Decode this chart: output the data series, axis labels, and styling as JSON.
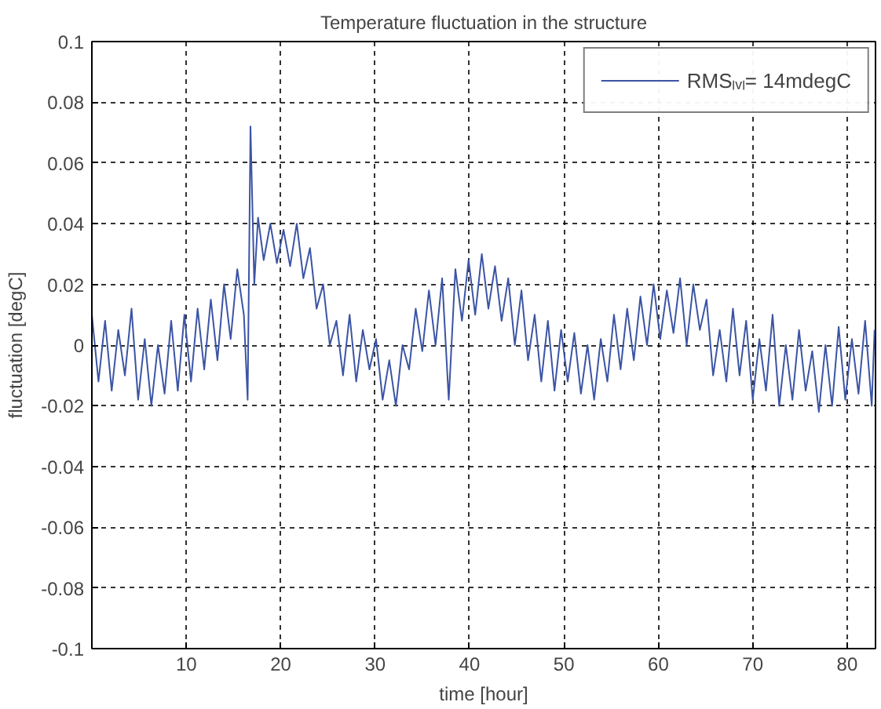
{
  "chart_data": {
    "type": "line",
    "title": "Temperature fluctuation in the structure",
    "xlabel": "time [hour]",
    "ylabel": "fluctuation [degC]",
    "x": [
      0,
      0.7,
      1.4,
      2.1,
      2.8,
      3.5,
      4.2,
      4.9,
      5.6,
      6.3,
      7,
      7.7,
      8.4,
      9.1,
      9.8,
      10.5,
      11.2,
      11.9,
      12.6,
      13.3,
      14,
      14.7,
      15.4,
      16.1,
      16.5,
      16.8,
      17.2,
      17.6,
      18.2,
      18.9,
      19.6,
      20.3,
      21,
      21.7,
      22.4,
      23.1,
      23.8,
      24.5,
      25.2,
      25.9,
      26.6,
      27.3,
      28,
      28.7,
      29.4,
      30.1,
      30.8,
      31.5,
      32.2,
      32.9,
      33.6,
      34.3,
      35,
      35.7,
      36.4,
      37.1,
      37.8,
      38.5,
      39.2,
      39.9,
      40.6,
      41.3,
      42,
      42.7,
      43.4,
      44.1,
      44.8,
      45.5,
      46.2,
      46.9,
      47.6,
      48.3,
      49,
      49.7,
      50.4,
      51.1,
      51.8,
      52.5,
      53.2,
      53.9,
      54.6,
      55.3,
      56,
      56.7,
      57.4,
      58.1,
      58.8,
      59.5,
      60.2,
      60.9,
      61.6,
      62.3,
      63,
      63.7,
      64.4,
      65.1,
      65.8,
      66.5,
      67.2,
      67.9,
      68.6,
      69.3,
      70,
      70.7,
      71.4,
      72.1,
      72.8,
      73.5,
      74.2,
      74.9,
      75.6,
      76.3,
      77,
      77.7,
      78.4,
      79.1,
      79.8,
      80.5,
      81.2,
      81.9,
      82.6,
      82.9
    ],
    "series": [
      {
        "name": "RMSₗᵥₗ= 14mdegC",
        "color": "#3b54a5",
        "values": [
          0.01,
          -0.012,
          0.008,
          -0.015,
          0.005,
          -0.01,
          0.012,
          -0.018,
          0.002,
          -0.02,
          0.0,
          -0.016,
          0.008,
          -0.015,
          0.01,
          -0.012,
          0.012,
          -0.008,
          0.015,
          -0.005,
          0.02,
          0.002,
          0.025,
          0.01,
          -0.018,
          0.072,
          0.02,
          0.042,
          0.028,
          0.04,
          0.027,
          0.038,
          0.026,
          0.04,
          0.022,
          0.032,
          0.012,
          0.02,
          0.0,
          0.008,
          -0.01,
          0.01,
          -0.012,
          0.005,
          -0.008,
          0.002,
          -0.018,
          -0.005,
          -0.02,
          0.0,
          -0.008,
          0.012,
          -0.002,
          0.018,
          0.0,
          0.022,
          -0.018,
          0.025,
          0.008,
          0.028,
          0.01,
          0.03,
          0.012,
          0.026,
          0.008,
          0.022,
          0.0,
          0.018,
          -0.005,
          0.01,
          -0.012,
          0.008,
          -0.015,
          0.005,
          -0.012,
          0.004,
          -0.016,
          0.0,
          -0.018,
          0.002,
          -0.012,
          0.01,
          -0.008,
          0.012,
          -0.005,
          0.016,
          0.0,
          0.02,
          0.002,
          0.018,
          0.004,
          0.022,
          0.0,
          0.02,
          0.005,
          0.015,
          -0.01,
          0.005,
          -0.012,
          0.012,
          -0.01,
          0.008,
          -0.018,
          0.002,
          -0.015,
          0.01,
          -0.02,
          0.0,
          -0.018,
          0.005,
          -0.015,
          -0.002,
          -0.022,
          0.0,
          -0.02,
          0.006,
          -0.018,
          0.002,
          -0.016,
          0.008,
          -0.02,
          0.005
        ]
      }
    ],
    "xlim": [
      0,
      83
    ],
    "xticks": [
      10,
      20,
      30,
      40,
      50,
      60,
      70,
      80
    ],
    "ylim": [
      -0.1,
      0.1
    ],
    "yticks": [
      {
        "value": -0.1,
        "label": "-0.1"
      },
      {
        "value": -0.08,
        "label": "-0.08"
      },
      {
        "value": -0.06,
        "label": "-0.06"
      },
      {
        "value": -0.04,
        "label": "-0.04"
      },
      {
        "value": -0.02,
        "label": "-0.02"
      },
      0,
      {
        "value": 0.02,
        "label": "0.02"
      },
      {
        "value": 0.04,
        "label": "0.04"
      },
      {
        "value": 0.06,
        "label": "0.06"
      },
      {
        "value": 0.08,
        "label": "0.08"
      },
      {
        "value": 0.1,
        "label": "0.1"
      }
    ],
    "grid": true,
    "legend": "top right",
    "line_style": "solid"
  }
}
